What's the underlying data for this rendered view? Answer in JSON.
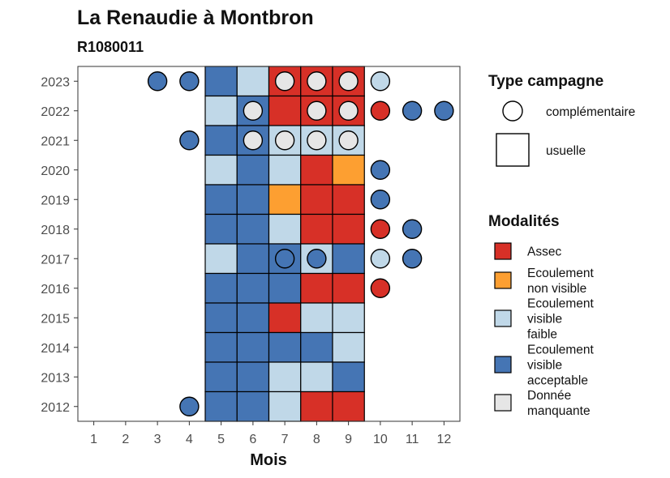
{
  "chart_data": {
    "type": "heatmap",
    "title": "La Renaudie à Montbron",
    "subtitle": "R1080011",
    "xlabel": "Mois",
    "ylabel": "",
    "x_ticks": [
      "1",
      "2",
      "3",
      "4",
      "5",
      "6",
      "7",
      "8",
      "9",
      "10",
      "11",
      "12"
    ],
    "y_ticks": [
      "2012",
      "2013",
      "2014",
      "2015",
      "2016",
      "2017",
      "2018",
      "2019",
      "2020",
      "2021",
      "2022",
      "2023"
    ],
    "xlim": [
      0.5,
      12.5
    ],
    "ylim": [
      2011.5,
      2023.5
    ],
    "grid": false,
    "legend": {
      "placement": "right",
      "campagne": {
        "title": "Type campagne",
        "items": [
          {
            "key": "complementaire",
            "label": "complémentaire"
          },
          {
            "key": "usuelle",
            "label": "usuelle"
          }
        ]
      },
      "modalites": {
        "title": "Modalités",
        "items": [
          {
            "key": "assec",
            "lines": [
              "Assec"
            ],
            "color": "#d73027"
          },
          {
            "key": "non_visible",
            "lines": [
              "Ecoulement",
              "non visible"
            ],
            "color": "#fd9f31"
          },
          {
            "key": "faible",
            "lines": [
              "Ecoulement",
              "visible",
              "faible"
            ],
            "color": "#c0d8e8"
          },
          {
            "key": "acceptable",
            "lines": [
              "Ecoulement",
              "visible",
              "acceptable"
            ],
            "color": "#4575b4"
          },
          {
            "key": "manquante",
            "lines": [
              "Donnée",
              "manquante"
            ],
            "color": "#e6e6e6"
          }
        ]
      }
    },
    "colors": {
      "assec": "#d73027",
      "non_visible": "#fd9f31",
      "faible": "#c0d8e8",
      "acceptable": "#4575b4",
      "manquante": "#e6e6e6"
    },
    "usuelle": [
      {
        "year": 2023,
        "values": {
          "5": "acceptable",
          "6": "faible",
          "7": "assec",
          "8": "assec",
          "9": "assec"
        }
      },
      {
        "year": 2022,
        "values": {
          "5": "faible",
          "6": "acceptable",
          "7": "assec",
          "8": "assec",
          "9": "assec"
        }
      },
      {
        "year": 2021,
        "values": {
          "5": "acceptable",
          "6": "acceptable",
          "7": "faible",
          "8": "faible",
          "9": "faible"
        }
      },
      {
        "year": 2020,
        "values": {
          "5": "faible",
          "6": "acceptable",
          "7": "faible",
          "8": "assec",
          "9": "non_visible"
        }
      },
      {
        "year": 2019,
        "values": {
          "5": "acceptable",
          "6": "acceptable",
          "7": "non_visible",
          "8": "assec",
          "9": "assec"
        }
      },
      {
        "year": 2018,
        "values": {
          "5": "acceptable",
          "6": "acceptable",
          "7": "faible",
          "8": "assec",
          "9": "assec"
        }
      },
      {
        "year": 2017,
        "values": {
          "5": "faible",
          "6": "acceptable",
          "7": "acceptable",
          "8": "faible",
          "9": "acceptable"
        }
      },
      {
        "year": 2016,
        "values": {
          "5": "acceptable",
          "6": "acceptable",
          "7": "acceptable",
          "8": "assec",
          "9": "assec"
        }
      },
      {
        "year": 2015,
        "values": {
          "5": "acceptable",
          "6": "acceptable",
          "7": "assec",
          "8": "faible",
          "9": "faible"
        }
      },
      {
        "year": 2014,
        "values": {
          "5": "acceptable",
          "6": "acceptable",
          "7": "acceptable",
          "8": "acceptable",
          "9": "faible"
        }
      },
      {
        "year": 2013,
        "values": {
          "5": "acceptable",
          "6": "acceptable",
          "7": "faible",
          "8": "faible",
          "9": "acceptable"
        }
      },
      {
        "year": 2012,
        "values": {
          "5": "acceptable",
          "6": "acceptable",
          "7": "faible",
          "8": "assec",
          "9": "assec"
        }
      }
    ],
    "complementaire": [
      {
        "year": 2023,
        "values": {
          "3": "acceptable",
          "4": "acceptable",
          "7": "manquante",
          "8": "manquante",
          "9": "manquante",
          "10": "faible"
        }
      },
      {
        "year": 2022,
        "values": {
          "6": "manquante",
          "8": "manquante",
          "9": "manquante",
          "10": "assec",
          "11": "acceptable",
          "12": "acceptable"
        }
      },
      {
        "year": 2021,
        "values": {
          "4": "acceptable",
          "6": "manquante",
          "7": "manquante",
          "8": "manquante",
          "9": "manquante"
        }
      },
      {
        "year": 2020,
        "values": {
          "10": "acceptable"
        }
      },
      {
        "year": 2019,
        "values": {
          "10": "acceptable"
        }
      },
      {
        "year": 2018,
        "values": {
          "10": "assec",
          "11": "acceptable"
        }
      },
      {
        "year": 2017,
        "values": {
          "7": "acceptable",
          "8": "acceptable",
          "10": "faible",
          "11": "acceptable"
        }
      },
      {
        "year": 2016,
        "values": {
          "10": "assec"
        }
      },
      {
        "year": 2012,
        "values": {
          "4": "acceptable"
        }
      }
    ]
  }
}
